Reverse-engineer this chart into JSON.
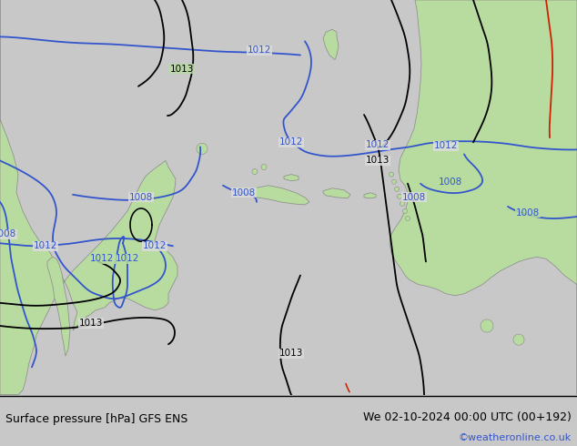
{
  "title_left": "Surface pressure [hPa] GFS ENS",
  "title_right": "We 02-10-2024 00:00 UTC (00+192)",
  "watermark": "©weatheronline.co.uk",
  "bg_land": "#b8dca0",
  "bg_ocean": "#dcdcdc",
  "bg_footer": "#c8c8c8",
  "blue": "#3355cc",
  "black": "#000000",
  "red": "#cc2200",
  "gray_coast": "#888888",
  "footer_div_color": "#000000",
  "label_fs": 7.5,
  "footer_fs": 9,
  "wm_fs": 8,
  "wm_color": "#3355cc",
  "lw": 1.3
}
